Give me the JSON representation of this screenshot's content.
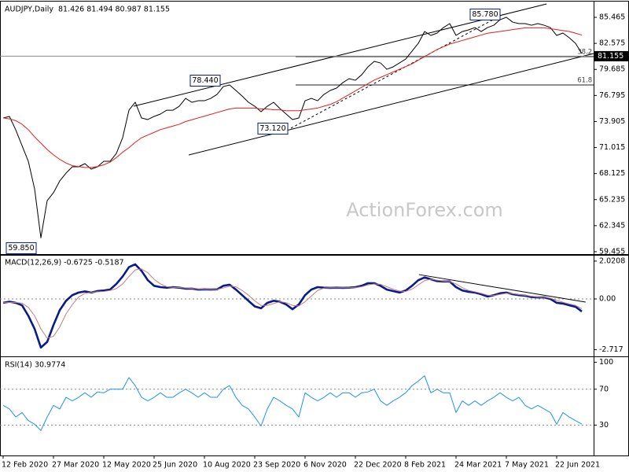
{
  "chart_data": [
    {
      "type": "line",
      "title": "AUDJPY,Daily  81.426 81.494 80.987 81.155",
      "watermark": "ActionForex.com",
      "ylim": [
        59.19,
        87.04
      ],
      "yticks": [
        59.455,
        62.345,
        65.235,
        68.125,
        71.015,
        73.905,
        76.795,
        79.685,
        82.575,
        85.465
      ],
      "series": [
        {
          "color": "#000000",
          "values": [
            74.29,
            74.47,
            72.98,
            71.23,
            69.49,
            66.43,
            61.0,
            65.12,
            66.0,
            67.31,
            68.18,
            68.88,
            68.88,
            69.23,
            68.62,
            68.88,
            69.49,
            69.49,
            70.36,
            72.11,
            75.16,
            76.04,
            74.29,
            74.12,
            74.47,
            74.73,
            75.16,
            75.16,
            75.6,
            76.47,
            76.04,
            76.21,
            76.21,
            76.47,
            76.91,
            77.78,
            77.96,
            77.35,
            76.73,
            76.04,
            75.6,
            74.99,
            75.6,
            76.04,
            75.34,
            74.73,
            74.12,
            74.29,
            76.21,
            76.47,
            76.21,
            76.91,
            77.35,
            77.61,
            78.22,
            78.66,
            78.48,
            79.09,
            79.97,
            80.58,
            80.4,
            79.7,
            79.97,
            80.4,
            80.84,
            81.71,
            82.58,
            83.89,
            83.46,
            83.72,
            84.33,
            84.77,
            83.46,
            83.89,
            84.07,
            84.33,
            83.89,
            84.33,
            84.59,
            85.2,
            85.47,
            84.94,
            84.77,
            84.77,
            84.59,
            84.77,
            84.59,
            84.33,
            83.46,
            83.72,
            83.2,
            82.58,
            81.45
          ]
        },
        {
          "color": "#e02020",
          "values": [
            74.3,
            74.2,
            74,
            73.6,
            73,
            72.2,
            71.5,
            70.8,
            70.2,
            69.7,
            69.3,
            69,
            68.9,
            68.8,
            68.8,
            68.9,
            69.1,
            69.4,
            69.9,
            70.5,
            71,
            71.6,
            72.1,
            72.4,
            72.7,
            73,
            73.2,
            73.4,
            73.6,
            73.9,
            74.1,
            74.3,
            74.5,
            74.7,
            74.9,
            75.1,
            75.3,
            75.4,
            75.4,
            75.4,
            75.4,
            75.3,
            75.3,
            75.2,
            75.2,
            75.1,
            75.1,
            75.1,
            75.2,
            75.3,
            75.4,
            75.6,
            75.8,
            76.1,
            76.5,
            76.9,
            77.3,
            77.7,
            78.1,
            78.5,
            78.8,
            79.1,
            79.4,
            79.7,
            80,
            80.3,
            80.7,
            81.1,
            81.5,
            81.9,
            82.2,
            82.5,
            82.7,
            82.9,
            83.1,
            83.3,
            83.5,
            83.7,
            83.8,
            83.9,
            84,
            84.1,
            84.2,
            84.3,
            84.3,
            84.3,
            84.3,
            84.2,
            84.1,
            84,
            83.9,
            83.7,
            83.5
          ]
        }
      ],
      "trendlines": [
        {
          "x": [
            20.75,
            86.4
          ],
          "y": [
            75.6,
            86.95
          ],
          "dashed": false
        },
        {
          "x": [
            29.5,
            93.9
          ],
          "y": [
            70.19,
            81.45
          ],
          "dashed": false
        },
        {
          "x": [
            45.75,
            79.5
          ],
          "y": [
            73.16,
            85.81
          ],
          "dashed": true
        }
      ],
      "levels": [
        {
          "ratio": 38.2,
          "value": 81.1,
          "x": [
            46.5,
            93.9
          ]
        },
        {
          "ratio": 61.8,
          "value": 77.96,
          "x": [
            46.5,
            93.9
          ]
        }
      ],
      "annotations": [
        {
          "x": 0.5,
          "value": 59.85,
          "label": "59.850"
        },
        {
          "x": 40.5,
          "value": 73.12,
          "label": "73.120"
        },
        {
          "x": 29.75,
          "value": 78.44,
          "label": "78.440"
        },
        {
          "x": 74.25,
          "value": 85.78,
          "label": "85.780"
        }
      ],
      "last_price": 81.155
    },
    {
      "type": "line",
      "title": "MACD(12,26,9) -0.6725 -0.5187",
      "ylim": [
        -3.03,
        2.27
      ],
      "yticks": [
        2.0208,
        {
          "value": 0,
          "label": "0.00"
        },
        -2.717
      ],
      "hlines": [
        0
      ],
      "series": [
        {
          "color": "#0a1a8c",
          "width": 2.6,
          "values": [
            -0.21,
            -0.15,
            -0.21,
            -0.34,
            -0.9,
            -1.6,
            -2.6,
            -2.3,
            -1.4,
            -0.6,
            -0.1,
            0.2,
            0.34,
            0.4,
            0.34,
            0.42,
            0.45,
            0.5,
            0.8,
            1.2,
            1.7,
            1.85,
            1.5,
            1,
            0.7,
            0.63,
            0.6,
            0.63,
            0.6,
            0.55,
            0.55,
            0.5,
            0.51,
            0.5,
            0.51,
            0.7,
            0.76,
            0.5,
            0.2,
            -0.1,
            -0.4,
            -0.5,
            -0.21,
            -0.1,
            -0.15,
            -0.3,
            -0.55,
            -0.3,
            0.2,
            0.5,
            0.63,
            0.6,
            0.59,
            0.6,
            0.59,
            0.6,
            0.63,
            0.7,
            0.84,
            0.84,
            0.7,
            0.5,
            0.42,
            0.34,
            0.45,
            0.7,
            1,
            1.15,
            1.05,
            0.95,
            0.93,
            0.93,
            0.63,
            0.45,
            0.38,
            0.34,
            0.25,
            0.13,
            0.2,
            0.3,
            0.34,
            0.25,
            0.2,
            0.17,
            0.1,
            0.08,
            0.08,
            0,
            -0.21,
            -0.25,
            -0.34,
            -0.42,
            -0.67
          ]
        },
        {
          "color": "#c08080",
          "width": 1,
          "values": [
            -0.2,
            -0.19,
            -0.19,
            -0.23,
            -0.45,
            -0.9,
            -1.6,
            -2.1,
            -2,
            -1.5,
            -0.8,
            -0.3,
            0.1,
            0.3,
            0.35,
            0.38,
            0.4,
            0.45,
            0.55,
            0.8,
            1.2,
            1.55,
            1.6,
            1.4,
            1.05,
            0.8,
            0.65,
            0.62,
            0.61,
            0.58,
            0.56,
            0.53,
            0.52,
            0.51,
            0.51,
            0.58,
            0.68,
            0.65,
            0.45,
            0.2,
            -0.1,
            -0.35,
            -0.35,
            -0.25,
            -0.15,
            -0.2,
            -0.35,
            -0.38,
            -0.15,
            0.15,
            0.45,
            0.58,
            0.6,
            0.6,
            0.6,
            0.6,
            0.61,
            0.65,
            0.75,
            0.8,
            0.78,
            0.65,
            0.52,
            0.42,
            0.4,
            0.52,
            0.75,
            0.98,
            1.05,
            1,
            0.95,
            0.93,
            0.8,
            0.6,
            0.45,
            0.38,
            0.3,
            0.2,
            0.18,
            0.24,
            0.3,
            0.28,
            0.23,
            0.19,
            0.14,
            0.1,
            0.08,
            0.04,
            -0.08,
            -0.18,
            -0.27,
            -0.35,
            -0.52
          ]
        }
      ],
      "trendlines": [
        {
          "x": [
            66.1,
            92.6
          ],
          "y": [
            1.3,
            -0.17
          ],
          "dashed": false
        }
      ]
    },
    {
      "type": "line",
      "title": "RSI(14) 30.9774",
      "ylim": [
        -3,
        104
      ],
      "yticks": [
        100,
        70,
        30
      ],
      "hlines": [
        70,
        30
      ],
      "series": [
        {
          "color": "#1e90ff",
          "width": 1,
          "values": [
            52,
            48,
            39,
            44,
            35,
            31,
            24,
            39,
            52,
            48,
            61,
            57,
            61,
            66,
            61,
            67,
            66,
            70,
            70,
            70,
            83,
            74,
            61,
            57,
            61,
            66,
            61,
            61,
            66,
            70,
            66,
            61,
            66,
            61,
            61,
            70,
            74,
            61,
            52,
            48,
            39,
            29,
            48,
            61,
            57,
            52,
            48,
            39,
            66,
            61,
            57,
            61,
            66,
            61,
            66,
            66,
            61,
            66,
            67,
            70,
            57,
            52,
            57,
            61,
            66,
            74,
            79,
            85,
            66,
            70,
            66,
            66,
            44,
            57,
            52,
            57,
            52,
            57,
            61,
            66,
            61,
            57,
            61,
            52,
            48,
            52,
            48,
            44,
            31,
            44,
            39,
            35,
            31
          ]
        }
      ],
      "categories": [
        "12 Feb 2020",
        null,
        null,
        null,
        null,
        null,
        null,
        null,
        "27 Mar 2020",
        null,
        null,
        null,
        null,
        null,
        null,
        null,
        "12 May 2020",
        null,
        null,
        null,
        null,
        null,
        null,
        null,
        "25 Jun 2020",
        null,
        null,
        null,
        null,
        null,
        null,
        null,
        "10 Aug 2020",
        null,
        null,
        null,
        null,
        null,
        null,
        null,
        "23 Sep 2020",
        null,
        null,
        null,
        null,
        null,
        null,
        null,
        "6 Nov 2020",
        null,
        null,
        null,
        null,
        null,
        null,
        null,
        "22 Dec 2020",
        null,
        null,
        null,
        null,
        null,
        null,
        null,
        "8 Feb 2021",
        null,
        null,
        null,
        null,
        null,
        null,
        null,
        "24 Mar 2021",
        null,
        null,
        null,
        null,
        null,
        null,
        null,
        "7 May 2021",
        null,
        null,
        null,
        null,
        null,
        null,
        null,
        "22 Jun 2021",
        null,
        null,
        null,
        null
      ]
    }
  ]
}
